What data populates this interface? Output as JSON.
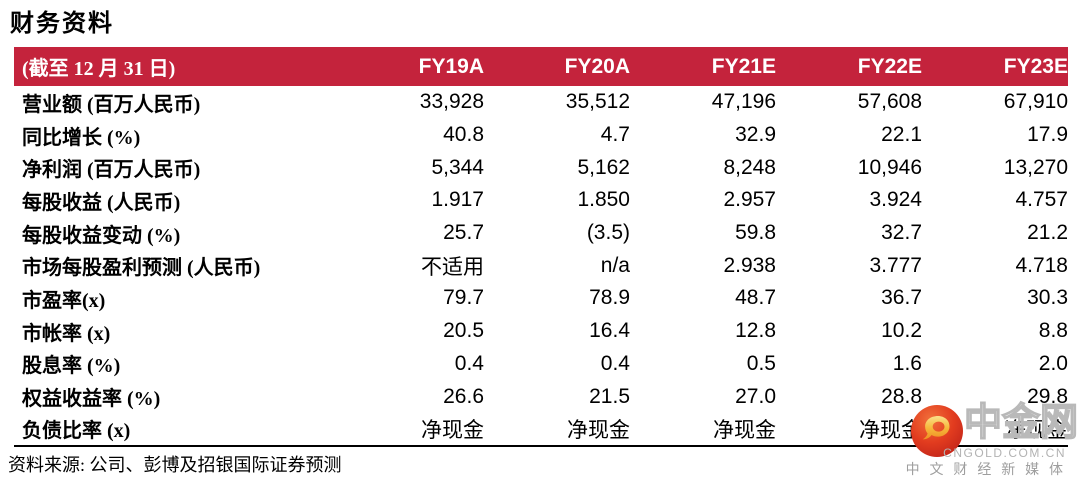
{
  "title": "财务资料",
  "table": {
    "header": {
      "label": "(截至 12 月 31 日)",
      "columns": [
        "FY19A",
        "FY20A",
        "FY21E",
        "FY22E",
        "FY23E"
      ]
    },
    "rows": [
      {
        "label": "营业额 (百万人民币)",
        "values": [
          "33,928",
          "35,512",
          "47,196",
          "57,608",
          "67,910"
        ]
      },
      {
        "label": "同比增长 (%)",
        "values": [
          "40.8",
          "4.7",
          "32.9",
          "22.1",
          "17.9"
        ]
      },
      {
        "label": "净利润 (百万人民币)",
        "values": [
          "5,344",
          "5,162",
          "8,248",
          "10,946",
          "13,270"
        ]
      },
      {
        "label": "每股收益 (人民币)",
        "values": [
          "1.917",
          "1.850",
          "2.957",
          "3.924",
          "4.757"
        ]
      },
      {
        "label": "每股收益变动 (%)",
        "values": [
          "25.7",
          "(3.5)",
          "59.8",
          "32.7",
          "21.2"
        ]
      },
      {
        "label": "市场每股盈利预测 (人民币)",
        "values": [
          "不适用",
          "n/a",
          "2.938",
          "3.777",
          "4.718"
        ]
      },
      {
        "label": "市盈率(x)",
        "values": [
          "79.7",
          "78.9",
          "48.7",
          "36.7",
          "30.3"
        ]
      },
      {
        "label": "市帐率 (x)",
        "values": [
          "20.5",
          "16.4",
          "12.8",
          "10.2",
          "8.8"
        ]
      },
      {
        "label": "股息率 (%)",
        "values": [
          "0.4",
          "0.4",
          "0.5",
          "1.6",
          "2.0"
        ]
      },
      {
        "label": "权益收益率 (%)",
        "values": [
          "26.6",
          "21.5",
          "27.0",
          "28.8",
          "29.8"
        ]
      },
      {
        "label": "负债比率 (x)",
        "values": [
          "净现金",
          "净现金",
          "净现金",
          "净现金",
          "净现金"
        ]
      }
    ]
  },
  "footer": {
    "source": "资料来源: 公司、彭博及招银国际证券预测"
  },
  "watermark": {
    "brand": "中金网",
    "domain": "CNGOLD.COM.CN",
    "tagline": "中 文 财 经 新 媒 体",
    "logo_icon": "cngold-cloud-comma-icon"
  },
  "colors": {
    "header_bg": "#C4233C",
    "header_text": "#FFFFFF",
    "body_text": "#000000",
    "watermark_gray": "#B3B3B3",
    "logo_red": "#D9301E",
    "logo_orange": "#F1703A",
    "logo_gold": "#F6B93C"
  }
}
